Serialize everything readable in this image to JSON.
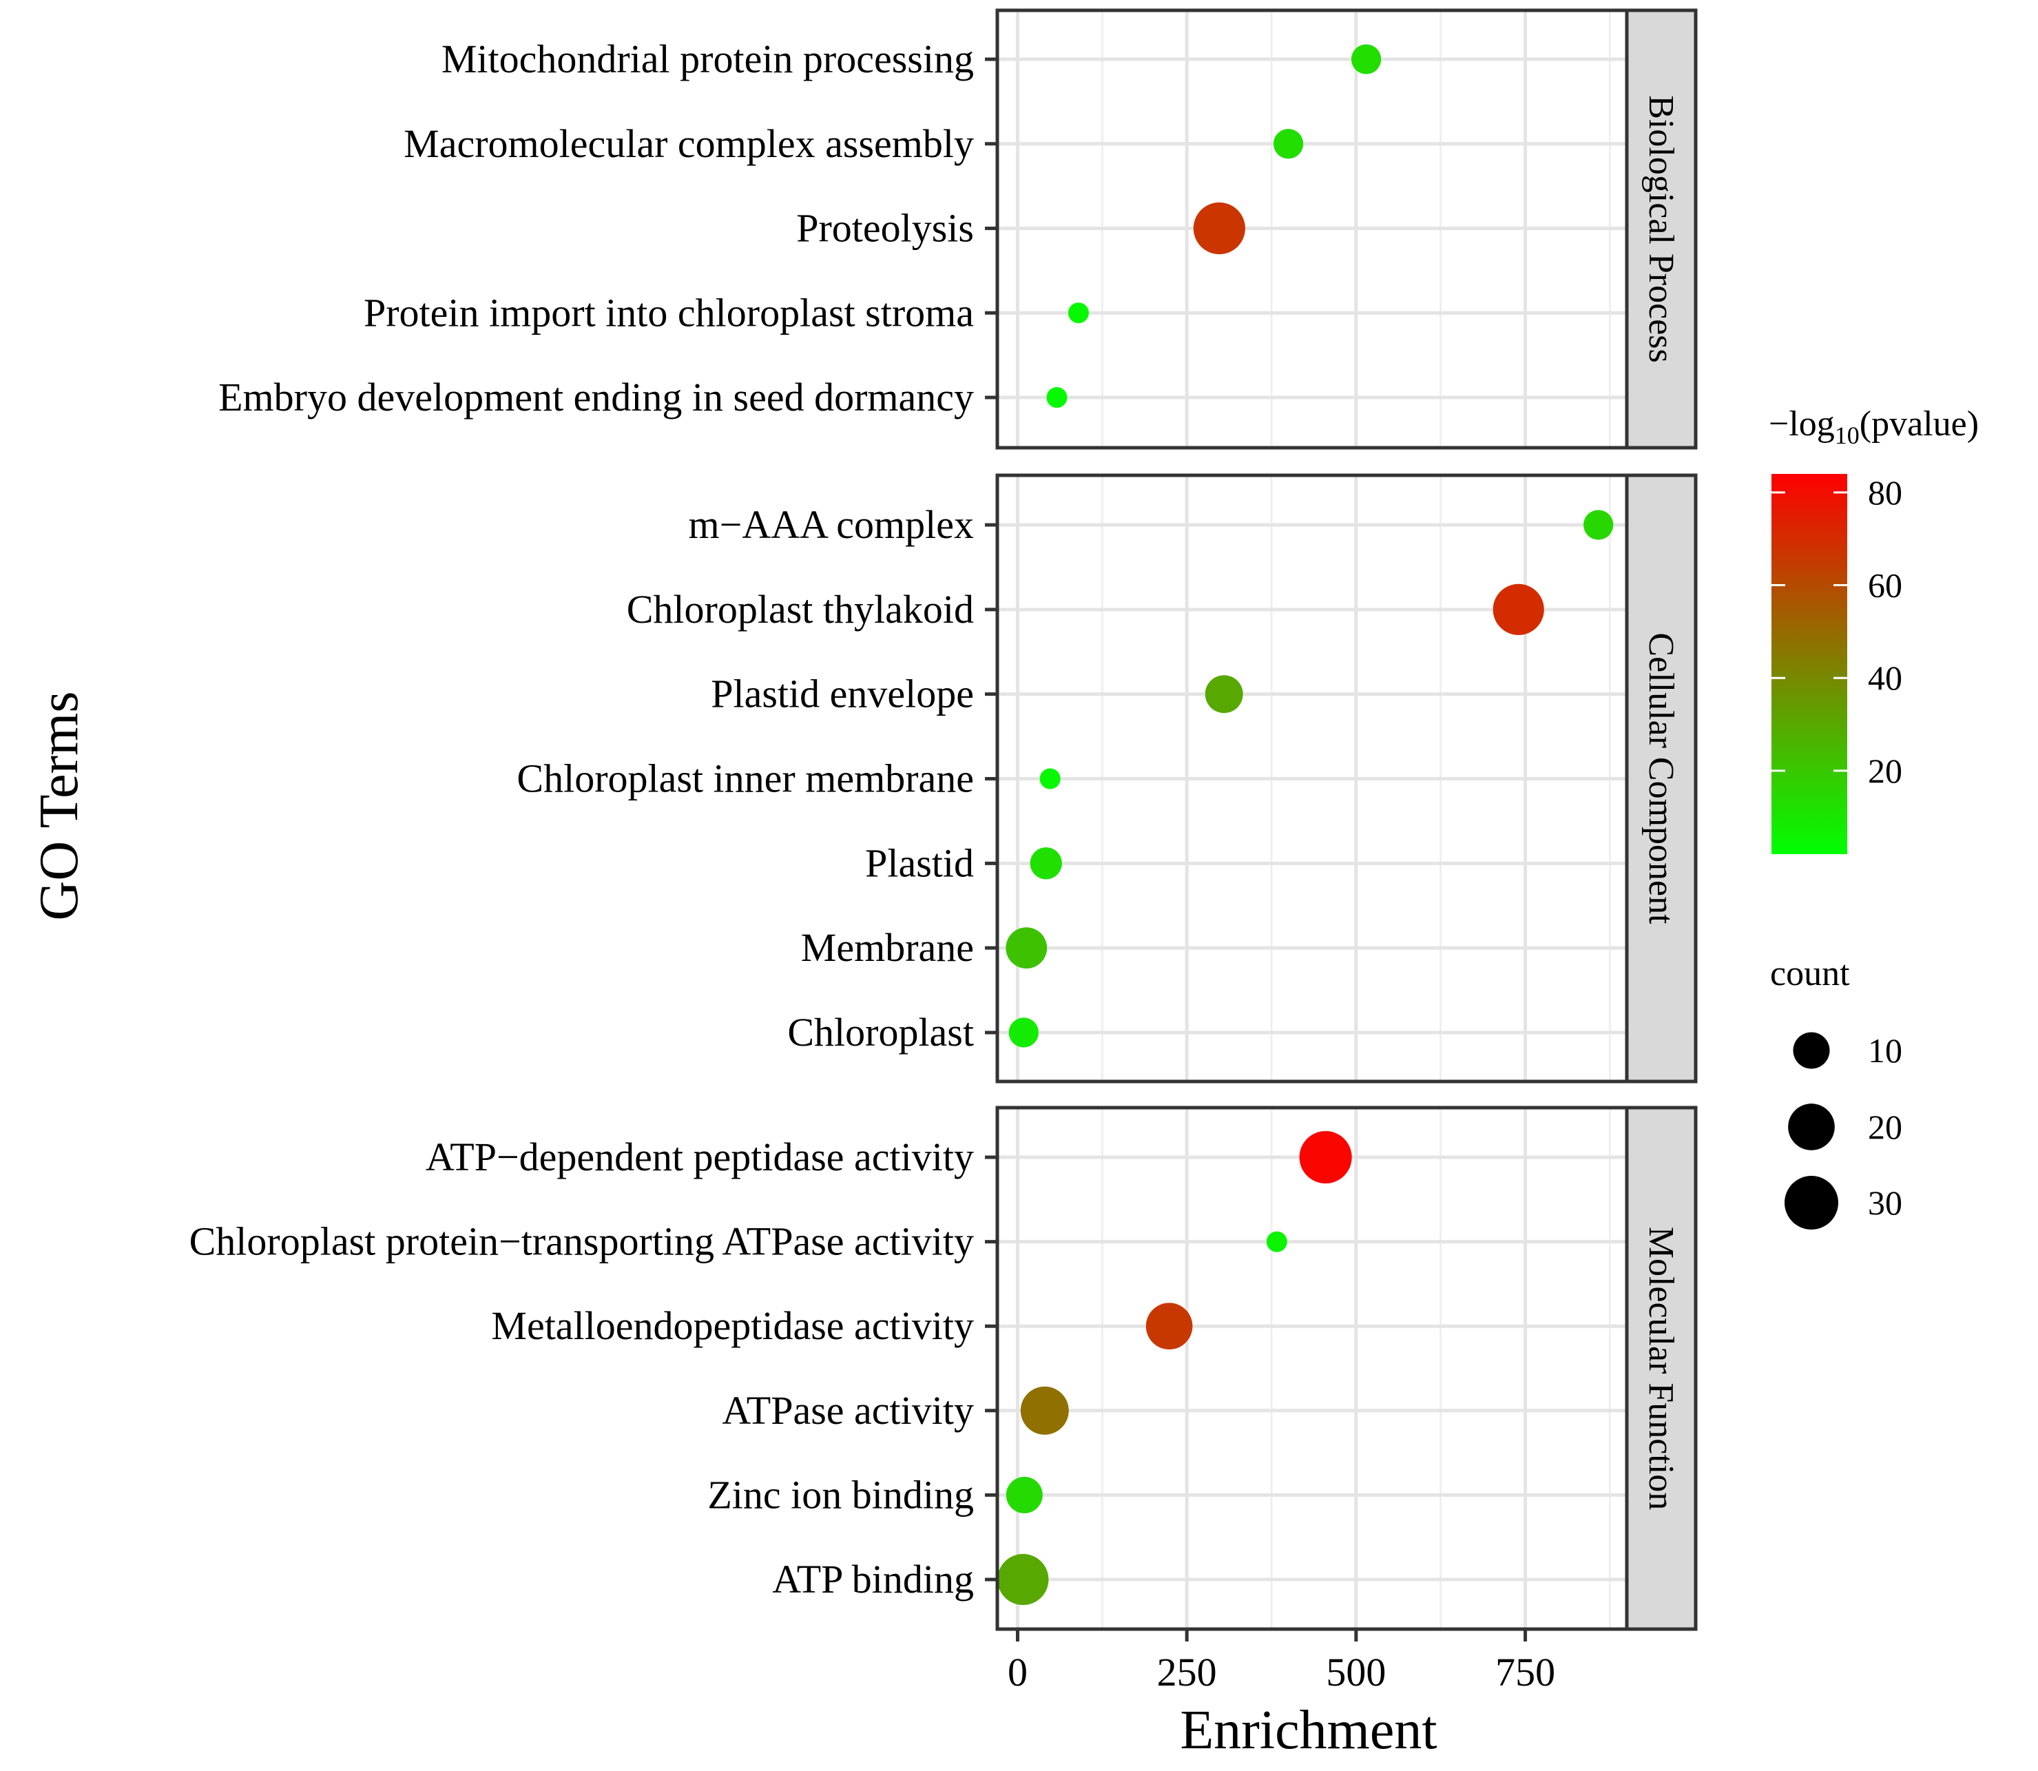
{
  "chart_data": {
    "type": "scatter",
    "xlabel": "Enrichment",
    "ylabel": "GO Terms",
    "xlim": [
      -30,
      900
    ],
    "x_ticks": [
      0,
      250,
      500,
      750
    ],
    "grid": true,
    "panels": [
      {
        "name": "Biological Process",
        "points": [
          {
            "term": "Mitochondrial protein processing",
            "enrichment": 515,
            "count": 6,
            "neg_log10_pvalue": 13
          },
          {
            "term": "Macromolecular complex assembly",
            "enrichment": 400,
            "count": 6,
            "neg_log10_pvalue": 13
          },
          {
            "term": "Proteolysis",
            "enrichment": 298,
            "count": 27,
            "neg_log10_pvalue": 67
          },
          {
            "term": "Protein import into chloroplast stroma",
            "enrichment": 90,
            "count": 4,
            "neg_log10_pvalue": 4
          },
          {
            "term": "Embryo development ending in seed dormancy",
            "enrichment": 58,
            "count": 4,
            "neg_log10_pvalue": 4
          }
        ]
      },
      {
        "name": "Cellular Component",
        "points": [
          {
            "term": "m−AAA complex",
            "enrichment": 858,
            "count": 6,
            "neg_log10_pvalue": 15
          },
          {
            "term": "Chloroplast thylakoid",
            "enrichment": 740,
            "count": 26,
            "neg_log10_pvalue": 70
          },
          {
            "term": "Plastid envelope",
            "enrichment": 305,
            "count": 11,
            "neg_log10_pvalue": 30
          },
          {
            "term": "Chloroplast inner membrane",
            "enrichment": 48,
            "count": 4,
            "neg_log10_pvalue": 4
          },
          {
            "term": "Plastid",
            "enrichment": 42,
            "count": 7,
            "neg_log10_pvalue": 12
          },
          {
            "term": "Membrane",
            "enrichment": 13,
            "count": 14,
            "neg_log10_pvalue": 22
          },
          {
            "term": "Chloroplast",
            "enrichment": 9,
            "count": 6,
            "neg_log10_pvalue": 8
          }
        ]
      },
      {
        "name": "Molecular Function",
        "points": [
          {
            "term": "ATP−dependent peptidase activity",
            "enrichment": 455,
            "count": 28,
            "neg_log10_pvalue": 82
          },
          {
            "term": "Chloroplast protein−transporting ATPase activity",
            "enrichment": 383,
            "count": 4,
            "neg_log10_pvalue": 6
          },
          {
            "term": "Metalloendopeptidase activity",
            "enrichment": 224,
            "count": 20,
            "neg_log10_pvalue": 66
          },
          {
            "term": "ATPase activity",
            "enrichment": 40,
            "count": 22,
            "neg_log10_pvalue": 48
          },
          {
            "term": "Zinc ion binding",
            "enrichment": 10,
            "count": 10,
            "neg_log10_pvalue": 14
          },
          {
            "term": "ATP binding",
            "enrichment": 8,
            "count": 26,
            "neg_log10_pvalue": 30
          }
        ]
      }
    ],
    "color_legend": {
      "title_prefix": "−log",
      "title_subscript": "10",
      "title_suffix": "(pvalue)",
      "range": [
        2,
        84
      ],
      "ticks": [
        80,
        60,
        40,
        20
      ],
      "low_color": "#00ff00",
      "high_color": "#ff0000"
    },
    "size_legend": {
      "title": "count",
      "values": [
        10,
        20,
        30
      ],
      "domain": [
        4,
        30
      ]
    }
  }
}
